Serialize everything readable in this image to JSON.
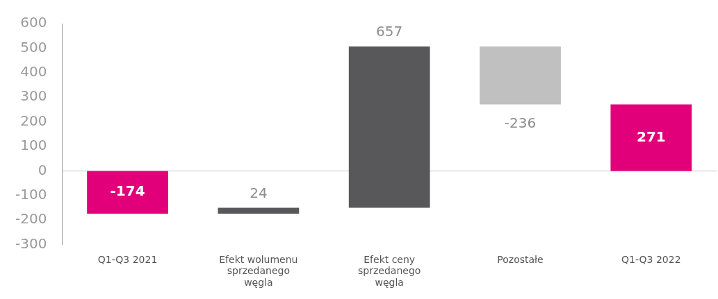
{
  "chart_data": {
    "type": "bar",
    "categories": [
      "Q1-Q3 2021",
      "Efekt wolumenu sprzedanego węgla",
      "Efekt ceny sprzedanego węgla",
      "Pozostałe",
      "Q1-Q3 2022"
    ],
    "values": [
      -174,
      24,
      657,
      -236,
      271
    ],
    "base": [
      0,
      -174,
      -150,
      507,
      0
    ],
    "colors": [
      "#e2007a",
      "#58585a",
      "#58585a",
      "#c0c0c0",
      "#e2007a"
    ],
    "data_labels": true,
    "ylim": [
      -300,
      600
    ],
    "yticks": [
      -300,
      -200,
      -100,
      0,
      100,
      200,
      300,
      400,
      500,
      600
    ],
    "grid": false,
    "ref_lines": [
      {
        "axis": "y",
        "value": 0,
        "color": "#c8c8c8"
      }
    ],
    "legend": false
  }
}
